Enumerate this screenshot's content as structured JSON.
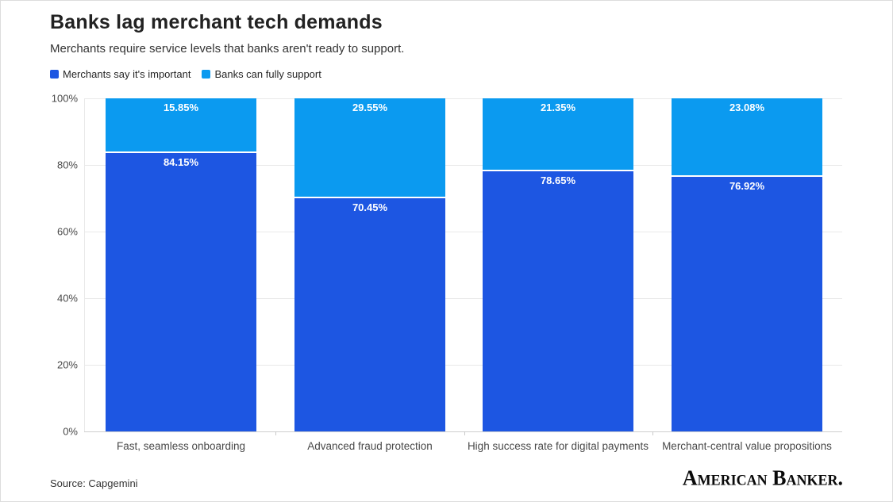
{
  "header": {
    "title": "Banks lag merchant tech demands",
    "subtitle": "Merchants require service levels that banks aren't ready to support."
  },
  "legend": {
    "items": [
      {
        "label": "Merchants say it's important",
        "color": "#1d56e2"
      },
      {
        "label": "Banks can fully support",
        "color": "#0b9af0"
      }
    ]
  },
  "colors": {
    "important": "#1d56e2",
    "support": "#0b9af0",
    "gridline": "#e9e9e9",
    "baseline": "#cfcfcf",
    "axis_text": "#494949"
  },
  "chart_data": {
    "type": "bar",
    "variant": "stacked-column",
    "title": "Banks lag merchant tech demands",
    "subtitle": "Merchants require service levels that banks aren't ready to support.",
    "categories": [
      "Fast, seamless onboarding",
      "Advanced fraud protection",
      "High success rate for digital payments",
      "Merchant-central value propositions"
    ],
    "series": [
      {
        "name": "Merchants say it's important",
        "color": "#1d56e2",
        "values": [
          84.15,
          70.45,
          78.65,
          76.92
        ]
      },
      {
        "name": "Banks can fully support",
        "color": "#0b9af0",
        "values": [
          15.85,
          29.55,
          21.35,
          23.08
        ]
      }
    ],
    "data_labels": {
      "important": [
        "84.15%",
        "70.45%",
        "78.65%",
        "76.92%"
      ],
      "support": [
        "15.85%",
        "29.55%",
        "21.35%",
        "23.08%"
      ]
    },
    "ylabel": "",
    "xlabel": "",
    "ylim": [
      0,
      100
    ],
    "y_ticks": [
      "0%",
      "20%",
      "40%",
      "60%",
      "80%",
      "100%"
    ],
    "grid": true,
    "legend_position": "top"
  },
  "footer": {
    "source": "Source: Capgemini",
    "brand": "American Banker."
  }
}
